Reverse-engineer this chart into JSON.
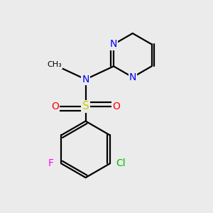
{
  "background_color": "#ebebeb",
  "figsize": [
    3.0,
    3.0
  ],
  "dpi": 100,
  "bond_color": "#000000",
  "bond_width": 1.6,
  "atom_colors": {
    "S": "#cccc00",
    "N": "#0000ff",
    "O": "#ff0000",
    "F": "#ff00ff",
    "Cl": "#00bb00",
    "C": "#000000"
  }
}
